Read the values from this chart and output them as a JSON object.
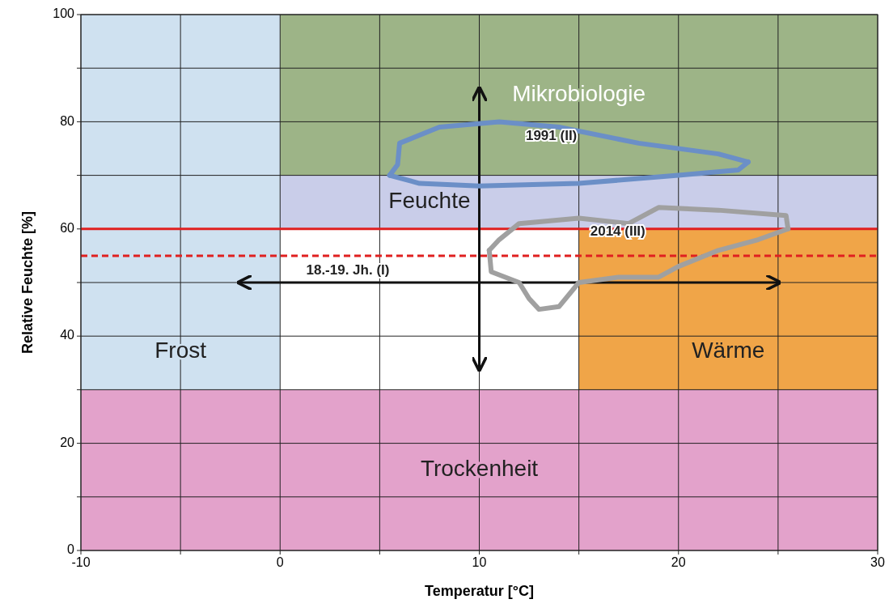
{
  "chart_data": {
    "type": "line",
    "xlabel": "Temperatur [°C]",
    "ylabel": "Relative Feuchte [%]",
    "xlim": [
      -10,
      30
    ],
    "ylim": [
      0,
      100
    ],
    "xticks": [
      -10,
      {
        "value": -5,
        "label": null
      },
      0,
      {
        "value": 5,
        "label": null
      },
      10,
      {
        "value": 15,
        "label": null
      },
      20,
      {
        "value": 25,
        "label": null
      },
      30
    ],
    "yticks": [
      0,
      {
        "value": 10,
        "label": null
      },
      20,
      {
        "value": 30,
        "label": null
      },
      40,
      {
        "value": 50,
        "label": null
      },
      60,
      {
        "value": 70,
        "label": null
      },
      80,
      {
        "value": 90,
        "label": null
      },
      100
    ],
    "grid": true,
    "marker": "none",
    "bands": [
      {
        "axis": "x",
        "from": 15,
        "to": 30,
        "label": "Wärme",
        "color": "#f0a548"
      },
      {
        "axis": "y",
        "from": 60,
        "to": 100,
        "label": "Feuchte",
        "color": "#c9cde9"
      },
      {
        "axis": "y",
        "from": 70,
        "to": 100,
        "label": "Mikrobiologie",
        "color": "#9db487"
      },
      {
        "axis": "x",
        "from": -10,
        "to": 0,
        "label": "Frost",
        "color": "#cfe1f0"
      },
      {
        "axis": "y",
        "from": 0,
        "to": 30,
        "label": "Trockenheit",
        "color": "#e3a2cb"
      }
    ],
    "ref_lines": [
      {
        "axis": "y",
        "value": 60,
        "color": "#e02020",
        "line_style": "solid"
      },
      {
        "axis": "y",
        "value": 55,
        "color": "#e02020",
        "line_style": "dashed"
      }
    ],
    "series": [
      {
        "name": "18.-19. Jh. (I)",
        "color": "#111111",
        "x": [
          -2,
          25
        ],
        "values": [
          50,
          50
        ]
      },
      {
        "color": "#111111",
        "x": [
          10,
          10
        ],
        "values": [
          34,
          86
        ]
      },
      {
        "name": "1991 (II)",
        "color": "#6b8fc7",
        "x": [
          5.5,
          5.9,
          6,
          8,
          11,
          14,
          18,
          22,
          23.5
        ],
        "values": [
          70,
          72,
          76,
          79,
          80,
          79,
          76,
          74,
          72.5
        ]
      },
      {
        "color": "#6b8fc7",
        "x": [
          5.5,
          7,
          10,
          15,
          20,
          23,
          23.5
        ],
        "values": [
          70,
          68.5,
          68,
          68.5,
          70,
          71,
          72.5
        ]
      },
      {
        "name": "2014 (III)",
        "color": "#a0a0a0",
        "x": [
          10.5,
          11,
          12,
          15,
          17.5,
          19,
          22,
          25.4,
          25.5
        ],
        "values": [
          56,
          58,
          61,
          62,
          61,
          64,
          63.5,
          62.5,
          60
        ]
      },
      {
        "color": "#a0a0a0",
        "x": [
          10.5,
          10.6,
          12,
          12.5,
          13,
          14,
          15,
          17,
          19,
          20,
          22,
          24,
          25.5
        ],
        "values": [
          56,
          52,
          50,
          47,
          45,
          45.5,
          50,
          51,
          51,
          53,
          56,
          58,
          60
        ]
      }
    ]
  }
}
